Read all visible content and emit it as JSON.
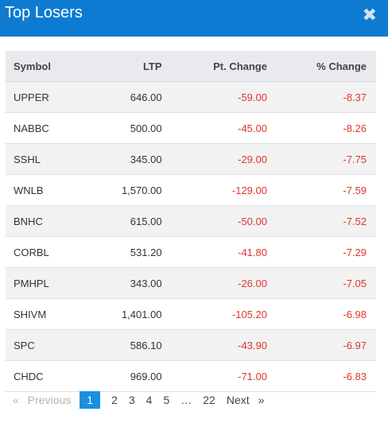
{
  "header": {
    "title": "Top Losers",
    "close_symbol": "✖"
  },
  "table": {
    "columns": [
      "Symbol",
      "LTP",
      "Pt. Change",
      "% Change"
    ],
    "rows": [
      {
        "symbol": "UPPER",
        "ltp": "646.00",
        "pt": "-59.00",
        "pct": "-8.37"
      },
      {
        "symbol": "NABBC",
        "ltp": "500.00",
        "pt": "-45.00",
        "pct": "-8.26"
      },
      {
        "symbol": "SSHL",
        "ltp": "345.00",
        "pt": "-29.00",
        "pct": "-7.75"
      },
      {
        "symbol": "WNLB",
        "ltp": "1,570.00",
        "pt": "-129.00",
        "pct": "-7.59"
      },
      {
        "symbol": "BNHC",
        "ltp": "615.00",
        "pt": "-50.00",
        "pct": "-7.52"
      },
      {
        "symbol": "CORBL",
        "ltp": "531.20",
        "pt": "-41.80",
        "pct": "-7.29"
      },
      {
        "symbol": "PMHPL",
        "ltp": "343.00",
        "pt": "-26.00",
        "pct": "-7.05"
      },
      {
        "symbol": "SHIVM",
        "ltp": "1,401.00",
        "pt": "-105.20",
        "pct": "-6.98"
      },
      {
        "symbol": "SPC",
        "ltp": "586.10",
        "pt": "-43.90",
        "pct": "-6.97"
      },
      {
        "symbol": "CHDC",
        "ltp": "969.00",
        "pt": "-71.00",
        "pct": "-6.83"
      }
    ]
  },
  "pagination": {
    "first_arrow": "«",
    "previous": "Previous",
    "pages": [
      "1",
      "2",
      "3",
      "4",
      "5",
      "…",
      "22"
    ],
    "active_page": "1",
    "next": "Next",
    "last_arrow": "»"
  },
  "colors": {
    "header_bg": "#0c7bd1",
    "negative": "#e0362f",
    "active_page": "#1a8fe0"
  }
}
